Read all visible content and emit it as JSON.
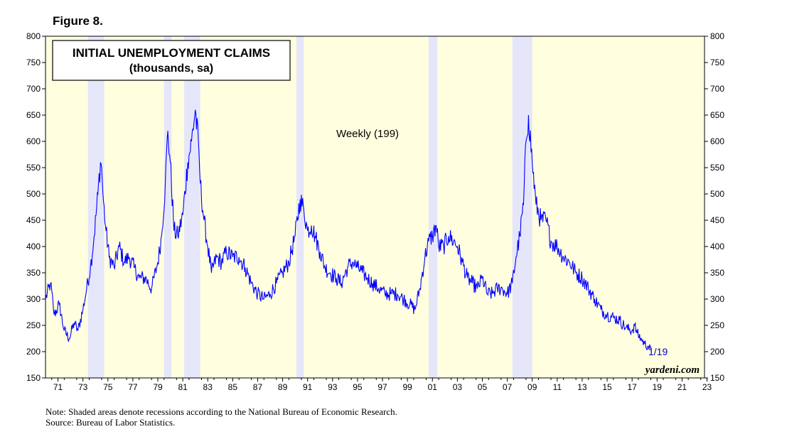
{
  "figure_label": "Figure 8.",
  "notes": {
    "note": "Note: Shaded areas denote recessions according to the National Bureau of Economic Research.",
    "source": "Source: Bureau of Labor Statistics."
  },
  "colors": {
    "plot_background": "#ffffe0",
    "recession_shade": "#e6e6fa",
    "series_line": "#0000ff",
    "last_label": "#0000cc"
  },
  "chart_data": {
    "type": "line",
    "title": "INITIAL UNEMPLOYMENT CLAIMS",
    "subtitle": "(thousands, sa)",
    "series_label": "Weekly (199)",
    "last_value_label": "1/19",
    "watermark": "yardeni.com",
    "xlabel": "",
    "ylabel": "",
    "xlim": [
      1970.5,
      2023.3
    ],
    "ylim": [
      150,
      800
    ],
    "y_ticks": [
      150,
      200,
      250,
      300,
      350,
      400,
      450,
      500,
      550,
      600,
      650,
      700,
      750,
      800
    ],
    "x_tick_labels": [
      "71",
      "73",
      "75",
      "77",
      "79",
      "81",
      "83",
      "85",
      "87",
      "89",
      "91",
      "93",
      "95",
      "97",
      "99",
      "01",
      "03",
      "05",
      "07",
      "09",
      "11",
      "13",
      "15",
      "17",
      "19",
      "21",
      "23"
    ],
    "grid": false,
    "recessions": [
      [
        1973.9,
        1975.2
      ],
      [
        1980.0,
        1980.6
      ],
      [
        1981.6,
        1982.9
      ],
      [
        1990.6,
        1991.2
      ],
      [
        2001.2,
        2001.9
      ],
      [
        2007.9,
        2009.5
      ]
    ],
    "series": [
      {
        "x": [
          1970.5,
          1970.9,
          1971.2,
          1971.6,
          1972.0,
          1972.4,
          1972.8,
          1973.1,
          1973.5,
          1973.8,
          1974.1,
          1974.4,
          1974.7,
          1974.9,
          1975.0,
          1975.1,
          1975.3,
          1975.6,
          1976.0,
          1976.4,
          1976.8,
          1977.2,
          1977.6,
          1978.0,
          1978.5,
          1979.0,
          1979.5,
          1979.8,
          1980.1,
          1980.3,
          1980.5,
          1980.8,
          1981.1,
          1981.5,
          1981.9,
          1982.2,
          1982.5,
          1982.8,
          1982.9,
          1983.2,
          1983.5,
          1983.8,
          1984.2,
          1984.6,
          1985.0,
          1985.5,
          1986.0,
          1986.5,
          1987.0,
          1987.5,
          1988.0,
          1988.5,
          1989.0,
          1989.5,
          1990.0,
          1990.5,
          1990.9,
          1991.2,
          1991.5,
          1991.8,
          1992.1,
          1992.5,
          1992.9,
          1993.3,
          1993.8,
          1994.2,
          1994.7,
          1995.1,
          1995.5,
          1995.9,
          1996.3,
          1996.7,
          1997.2,
          1997.7,
          1998.2,
          1998.7,
          1999.2,
          1999.7,
          2000.1,
          2000.5,
          2000.9,
          2001.2,
          2001.5,
          2001.8,
          2002.0,
          2002.4,
          2002.8,
          2003.2,
          2003.5,
          2003.9,
          2004.3,
          2004.7,
          2005.1,
          2005.5,
          2005.9,
          2006.3,
          2006.7,
          2007.1,
          2007.5,
          2007.9,
          2008.2,
          2008.5,
          2008.8,
          2009.0,
          2009.2,
          2009.5,
          2009.8,
          2010.2,
          2010.6,
          2011.0,
          2011.5,
          2012.0,
          2012.5,
          2013.0,
          2013.5,
          2014.0,
          2014.5,
          2015.0,
          2015.5,
          2016.0,
          2016.5,
          2017.0,
          2017.5,
          2017.7,
          2017.9,
          2018.2,
          2018.5,
          2018.8,
          2019.05
        ],
        "y": [
          300,
          330,
          270,
          290,
          240,
          225,
          255,
          240,
          280,
          320,
          360,
          420,
          500,
          560,
          550,
          500,
          440,
          380,
          360,
          400,
          370,
          380,
          360,
          340,
          340,
          320,
          370,
          420,
          520,
          620,
          560,
          430,
          420,
          460,
          560,
          600,
          660,
          580,
          520,
          450,
          400,
          350,
          380,
          370,
          390,
          380,
          380,
          360,
          330,
          310,
          300,
          310,
          330,
          350,
          370,
          420,
          490,
          470,
          430,
          440,
          420,
          390,
          360,
          350,
          340,
          330,
          360,
          370,
          360,
          350,
          340,
          330,
          320,
          310,
          310,
          310,
          300,
          290,
          280,
          320,
          380,
          410,
          420,
          440,
          400,
          400,
          420,
          410,
          400,
          370,
          340,
          330,
          320,
          340,
          310,
          310,
          320,
          320,
          310,
          330,
          380,
          420,
          480,
          600,
          650,
          560,
          480,
          450,
          450,
          410,
          400,
          380,
          370,
          350,
          340,
          320,
          300,
          280,
          270,
          265,
          260,
          245,
          240,
          250,
          235,
          225,
          215,
          210,
          199
        ]
      }
    ]
  }
}
